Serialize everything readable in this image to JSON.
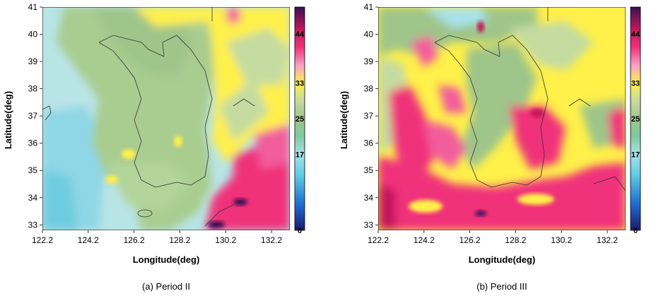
{
  "figure": {
    "panels": [
      {
        "id": "a",
        "caption": "(a) Period II",
        "xlabel": "Longitude(deg)",
        "ylabel": "Latitude(deg)",
        "x_ticks": [
          "122.2",
          "124.2",
          "126.2",
          "128.2",
          "130.2",
          "132.2"
        ],
        "y_ticks": [
          "33",
          "34",
          "35",
          "36",
          "37",
          "38",
          "39",
          "40",
          "41"
        ],
        "xlim": [
          122.2,
          133.0
        ],
        "ylim": [
          32.8,
          41.0
        ],
        "colorbar_ticks": [
          "44",
          "33",
          "25",
          "17",
          "0"
        ],
        "colorbar_range": [
          0,
          50
        ]
      },
      {
        "id": "b",
        "caption": "(b) Period III",
        "xlabel": "Longitude(deg)",
        "ylabel": "Latitude(deg)",
        "x_ticks": [
          "122.2",
          "124.2",
          "126.2",
          "128.2",
          "130.2",
          "132.2"
        ],
        "y_ticks": [
          "33",
          "34",
          "35",
          "36",
          "37",
          "38",
          "39",
          "40",
          "41"
        ],
        "xlim": [
          122.2,
          133.0
        ],
        "ylim": [
          32.8,
          41.0
        ],
        "colorbar_ticks": [
          "44",
          "33",
          "25",
          "17",
          "0"
        ],
        "colorbar_range": [
          0,
          50
        ]
      }
    ],
    "palette": {
      "deep_purple": "#3b0f52",
      "magenta": "#c2185b",
      "pink": "#f0307a",
      "hot_pink": "#f25d9c",
      "light_pink": "#f6a0c4",
      "yellow": "#fff04a",
      "pale_yellow": "#f7f59a",
      "pale_green": "#c5dba0",
      "green": "#9fc58a",
      "teal": "#7fcaa0",
      "light_cyan": "#a8e2ea",
      "cyan": "#5fcde4",
      "blue": "#1f6fd1",
      "navy": "#1a1a6e",
      "coast": "#333333"
    }
  }
}
